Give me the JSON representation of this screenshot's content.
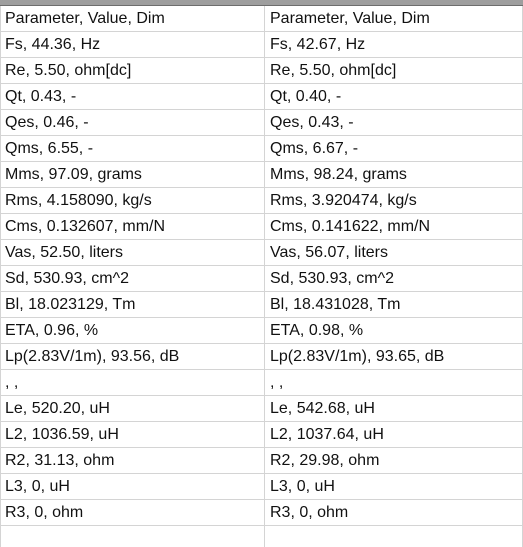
{
  "sheet": {
    "rows": [
      {
        "left": "Parameter, Value, Dim",
        "right": "Parameter, Value, Dim"
      },
      {
        "left": "Fs, 44.36, Hz",
        "right": "Fs, 42.67, Hz"
      },
      {
        "left": "Re, 5.50, ohm[dc]",
        "right": "Re, 5.50, ohm[dc]"
      },
      {
        "left": "Qt, 0.43, -",
        "right": "Qt, 0.40, -"
      },
      {
        "left": "Qes, 0.46, -",
        "right": "Qes, 0.43, -"
      },
      {
        "left": "Qms, 6.55, -",
        "right": "Qms, 6.67, -"
      },
      {
        "left": "Mms, 97.09, grams",
        "right": "Mms, 98.24, grams"
      },
      {
        "left": "Rms, 4.158090, kg/s",
        "right": "Rms, 3.920474, kg/s"
      },
      {
        "left": "Cms, 0.132607, mm/N",
        "right": "Cms, 0.141622, mm/N"
      },
      {
        "left": "Vas, 52.50, liters",
        "right": "Vas, 56.07, liters"
      },
      {
        "left": "Sd, 530.93, cm^2",
        "right": "Sd, 530.93, cm^2"
      },
      {
        "left": "Bl, 18.023129, Tm",
        "right": "Bl, 18.431028, Tm"
      },
      {
        "left": "ETA,  0.96, %",
        "right": "ETA,  0.98, %"
      },
      {
        "left": "Lp(2.83V/1m), 93.56, dB",
        "right": "Lp(2.83V/1m), 93.65, dB"
      },
      {
        "left": ", ,",
        "right": ", ,"
      },
      {
        "left": "Le, 520.20, uH",
        "right": "Le, 542.68, uH"
      },
      {
        "left": "L2, 1036.59, uH",
        "right": "L2, 1037.64, uH"
      },
      {
        "left": "R2, 31.13, ohm",
        "right": "R2, 29.98, ohm"
      },
      {
        "left": "L3, 0, uH",
        "right": "L3, 0, uH"
      },
      {
        "left": "R3, 0, ohm",
        "right": "R3, 0, ohm"
      }
    ]
  }
}
